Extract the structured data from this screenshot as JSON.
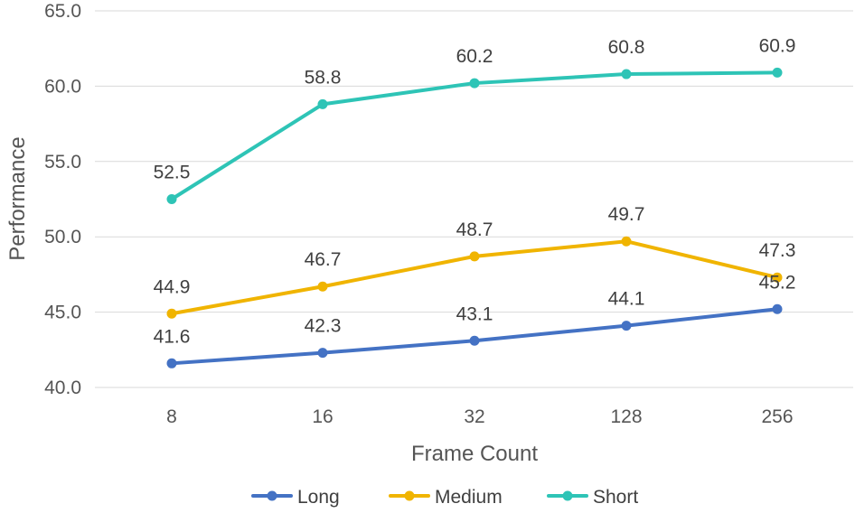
{
  "chart_data": {
    "type": "line",
    "xlabel": "Frame Count",
    "ylabel": "Performance",
    "categories": [
      "8",
      "16",
      "32",
      "128",
      "256"
    ],
    "ylim": [
      40.0,
      65.0
    ],
    "yticks": [
      "40.0",
      "45.0",
      "50.0",
      "55.0",
      "60.0",
      "65.0"
    ],
    "grid": true,
    "legend_position": "bottom",
    "series": [
      {
        "name": "Long",
        "color": "#4472C4",
        "values": [
          41.6,
          42.3,
          43.1,
          44.1,
          45.2
        ],
        "labels": [
          "41.6",
          "42.3",
          "43.1",
          "44.1",
          "45.2"
        ]
      },
      {
        "name": "Medium",
        "color": "#F0B400",
        "values": [
          44.9,
          46.7,
          48.7,
          49.7,
          47.3
        ],
        "labels": [
          "44.9",
          "46.7",
          "48.7",
          "49.7",
          "47.3"
        ]
      },
      {
        "name": "Short",
        "color": "#2EC4B6",
        "values": [
          52.5,
          58.8,
          60.2,
          60.8,
          60.9
        ],
        "labels": [
          "52.5",
          "58.8",
          "60.2",
          "60.8",
          "60.9"
        ]
      }
    ]
  }
}
